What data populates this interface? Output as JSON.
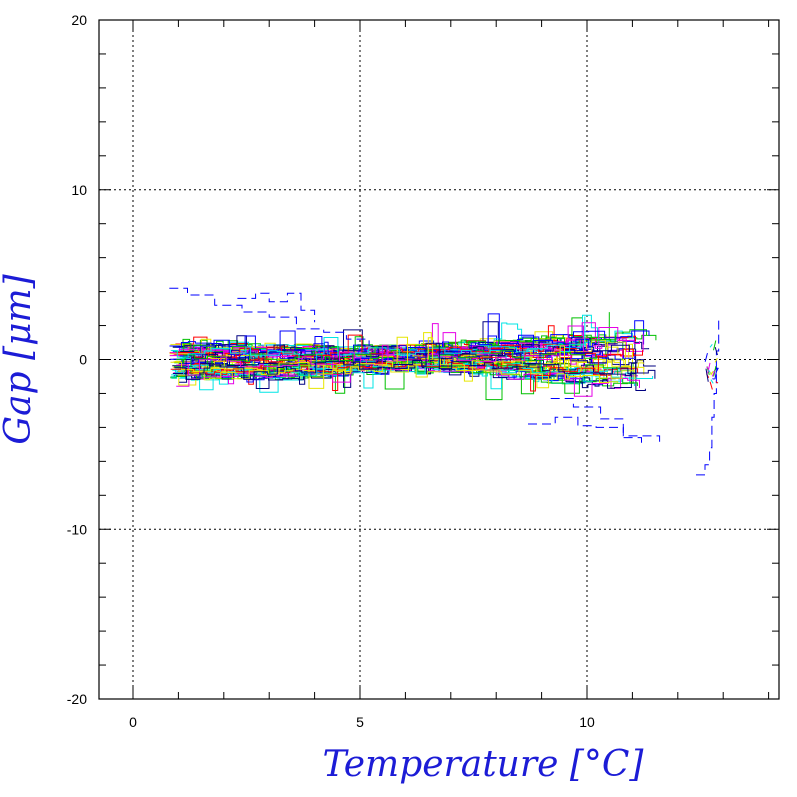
{
  "chart_data": {
    "type": "line",
    "title": "",
    "xlabel": "Temperature [°C]",
    "ylabel": "Gap [μm]",
    "xlim": [
      -0.7,
      14.2
    ],
    "ylim": [
      -20,
      20
    ],
    "x_ticks": [
      0,
      5,
      10
    ],
    "x_tick_labels": [
      "0",
      "5",
      "10"
    ],
    "y_ticks": [
      -20,
      -10,
      0,
      10,
      20
    ],
    "y_tick_labels": [
      "-20",
      "-10",
      "0",
      "10",
      "20"
    ],
    "grid": true,
    "grid_style": "dotted",
    "legend": "none",
    "series_colors": [
      "#0000ff",
      "#ff0000",
      "#00c000",
      "#00e5e5",
      "#e600e6",
      "#e6e600",
      "#000080"
    ],
    "band": {
      "x": [
        0.8,
        1.5,
        2.5,
        3.5,
        4.5,
        5.5,
        6.5,
        7.5,
        8.5,
        9.5,
        10.5,
        11.6
      ],
      "low": [
        -1.5,
        -1.4,
        -1.5,
        -1.3,
        -1.0,
        -0.9,
        -0.8,
        -1.0,
        -1.5,
        -1.8,
        -2.0,
        -2.4
      ],
      "high": [
        1.2,
        1.2,
        1.3,
        1.1,
        0.9,
        0.9,
        1.0,
        1.3,
        1.6,
        1.9,
        2.1,
        2.3
      ]
    },
    "outlier_series": [
      {
        "style": "dashed",
        "color": "#0000ff",
        "x": [
          0.8,
          1.2,
          1.8,
          2.4,
          3.0,
          3.6,
          4.2,
          4.7,
          5.2
        ],
        "y": [
          4.2,
          3.8,
          3.2,
          2.8,
          2.5,
          1.8,
          1.6,
          1.2,
          0.8
        ]
      },
      {
        "style": "dashed",
        "color": "#0000ff",
        "x": [
          2.3,
          2.7,
          3.0,
          3.4,
          3.7,
          4.0
        ],
        "y": [
          3.6,
          3.9,
          3.4,
          3.9,
          2.9,
          2.2
        ]
      },
      {
        "style": "dashed",
        "color": "#0000ff",
        "x": [
          8.7,
          9.3,
          9.8,
          10.2,
          10.8,
          11.6
        ],
        "y": [
          -3.8,
          -3.4,
          -3.9,
          -4.0,
          -4.5,
          -4.9
        ]
      },
      {
        "style": "dashed",
        "color": "#0000ff",
        "x": [
          9.2,
          9.7,
          10.3,
          10.8,
          11.2
        ],
        "y": [
          -2.3,
          -2.8,
          -3.5,
          -4.6,
          -5.2
        ]
      },
      {
        "style": "dashed",
        "color": "#0000ff",
        "x": [
          12.4,
          12.6,
          12.7,
          12.75,
          12.8,
          12.85,
          12.9
        ],
        "y": [
          -6.8,
          -6.2,
          -5.2,
          -3.4,
          -2.0,
          0.5,
          2.4
        ]
      }
    ],
    "cluster": {
      "x_start": 12.6,
      "x_end": 12.85,
      "low": -1.6,
      "high": 2.2
    }
  }
}
